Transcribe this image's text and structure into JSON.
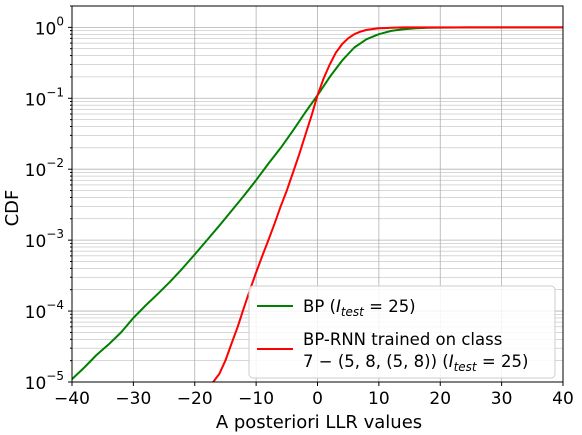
{
  "chart_data": {
    "type": "line",
    "xlabel": "A posteriori LLR values",
    "ylabel": "CDF",
    "xlim": [
      -40,
      40
    ],
    "ylim": [
      1e-05,
      2
    ],
    "yscale": "log",
    "grid": true,
    "legend_position": "lower-right",
    "x_ticks": [
      {
        "value": -40,
        "label": "−40"
      },
      {
        "value": -30,
        "label": "−30"
      },
      {
        "value": -20,
        "label": "−20"
      },
      {
        "value": -10,
        "label": "−10"
      },
      {
        "value": 0,
        "label": "0"
      },
      {
        "value": 10,
        "label": "10"
      },
      {
        "value": 20,
        "label": "20"
      },
      {
        "value": 30,
        "label": "30"
      },
      {
        "value": 40,
        "label": "40"
      }
    ],
    "y_ticks": [
      {
        "value": 1e-05,
        "base": "10",
        "exp": "−5"
      },
      {
        "value": 0.0001,
        "base": "10",
        "exp": "−4"
      },
      {
        "value": 0.001,
        "base": "10",
        "exp": "−3"
      },
      {
        "value": 0.01,
        "base": "10",
        "exp": "−2"
      },
      {
        "value": 0.1,
        "base": "10",
        "exp": "−1"
      },
      {
        "value": 1,
        "base": "10",
        "exp": "0"
      }
    ],
    "series": [
      {
        "name": "BP (I_test = 25)",
        "color": "#008000",
        "x": [
          -40,
          -38,
          -36,
          -34,
          -32,
          -30,
          -28,
          -26,
          -24,
          -22,
          -20,
          -18,
          -16,
          -14,
          -12,
          -10,
          -8,
          -6,
          -4,
          -2,
          0,
          2,
          4,
          6,
          8,
          10,
          12,
          14,
          16,
          18,
          20,
          25,
          30,
          35,
          40
        ],
        "y": [
          1.1e-05,
          1.6e-05,
          2.4e-05,
          3.4e-05,
          5e-05,
          8e-05,
          0.00012,
          0.000175,
          0.00026,
          0.0004,
          0.00063,
          0.001,
          0.0016,
          0.0026,
          0.0042,
          0.007,
          0.012,
          0.02,
          0.035,
          0.063,
          0.11,
          0.2,
          0.34,
          0.52,
          0.68,
          0.8,
          0.89,
          0.94,
          0.97,
          0.985,
          0.993,
          0.999,
          1.0,
          1.0,
          1.0
        ]
      },
      {
        "name": "BP-RNN trained on class 7 − (5, 8, (5, 8)) (I_test = 25)",
        "color": "#ff0000",
        "x": [
          -17,
          -16,
          -15,
          -14,
          -13,
          -12,
          -11,
          -10,
          -9,
          -8,
          -7,
          -6,
          -5,
          -4,
          -3,
          -2,
          -1,
          0,
          1,
          2,
          3,
          4,
          5,
          6,
          7,
          8,
          10,
          12,
          14,
          16,
          18,
          20,
          25,
          30,
          40
        ],
        "y": [
          1e-05,
          1.3e-05,
          2e-05,
          3.5e-05,
          6e-05,
          0.00011,
          0.0002,
          0.00035,
          0.0006,
          0.001,
          0.0017,
          0.003,
          0.005,
          0.009,
          0.016,
          0.03,
          0.056,
          0.11,
          0.19,
          0.3,
          0.44,
          0.58,
          0.7,
          0.8,
          0.87,
          0.92,
          0.97,
          0.99,
          0.997,
          0.999,
          1.0,
          1.0,
          1.0,
          1.0,
          1.0
        ]
      }
    ]
  },
  "legend": {
    "bp": {
      "pre": "BP (",
      "var": "I",
      "sub": "test",
      "post": " = 25)"
    },
    "rnn": {
      "line1": "BP-RNN trained on class",
      "line2": "7 − (5, 8, (5, 8)) (",
      "var": "I",
      "sub": "test",
      "post": " = 25)"
    }
  }
}
